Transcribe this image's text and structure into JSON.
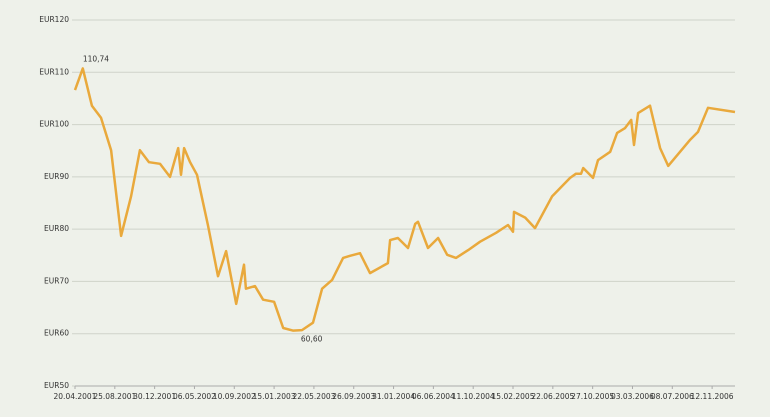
{
  "chart_data": {
    "type": "line",
    "x": [
      "20.04.2001",
      "15.05.2001",
      "13.06.2001",
      "12.07.2001",
      "13.08.2001",
      "14.09.2001",
      "16.10.2001",
      "13.11.2001",
      "12.12.2001",
      "16.01.2002",
      "17.02.2002",
      "15.03.2002",
      "24.03.2002",
      "03.04.2002",
      "22.04.2002",
      "14.05.2002",
      "18.06.2002",
      "20.07.2002",
      "15.08.2002",
      "16.09.2002",
      "11.10.2002",
      "17.10.2002",
      "15.11.2002",
      "11.12.2002",
      "15.01.2003",
      "13.02.2003",
      "16.03.2003",
      "14.04.2003",
      "19.05.2003",
      "17.06.2003",
      "19.07.2003",
      "23.08.2003",
      "14.09.2003",
      "16.10.2003",
      "17.11.2003",
      "13.01.2004",
      "20.01.2004",
      "14.02.2004",
      "17.03.2004",
      "09.04.2004",
      "18.04.2004",
      "20.05.2004",
      "21.06.2004",
      "20.07.2004",
      "17.08.2004",
      "25.09.2004",
      "02.11.2004",
      "23.12.2004",
      "30.01.2005",
      "15.02.2005",
      "18.02.2005",
      "26.03.2005",
      "26.04.2005",
      "20.06.2005",
      "16.08.2005",
      "04.09.2005",
      "20.09.2005",
      "27.09.2005",
      "28.10.2005",
      "13.11.2005",
      "22.12.2005",
      "13.01.2006",
      "07.02.2006",
      "27.02.2006",
      "08.03.2006",
      "21.03.2006",
      "28.04.2006",
      "30.05.2006",
      "25.06.2006",
      "03.09.2006",
      "28.09.2006",
      "30.10.2006",
      "24.01.2007"
    ],
    "series": [
      {
        "color": "#e9a93c",
        "values": [
          106.6,
          110.74,
          103.6,
          101.3,
          95.1,
          78.7,
          86.3,
          95.1,
          92.8,
          92.5,
          90.0,
          95.5,
          90.4,
          95.5,
          92.8,
          90.4,
          80.8,
          71.0,
          75.8,
          65.7,
          73.2,
          68.6,
          69.1,
          66.5,
          66.1,
          61.1,
          60.6,
          60.7,
          62.1,
          68.6,
          70.3,
          74.5,
          74.9,
          75.4,
          71.6,
          73.5,
          77.9,
          78.3,
          76.4,
          81.0,
          81.4,
          76.4,
          78.3,
          75.1,
          74.5,
          76.0,
          77.6,
          79.3,
          80.8,
          79.5,
          83.3,
          82.2,
          80.2,
          86.3,
          89.8,
          90.6,
          90.6,
          91.7,
          89.8,
          93.2,
          94.8,
          98.4,
          99.3,
          100.9,
          96.1,
          102.2,
          103.6,
          95.5,
          92.1,
          97.1,
          98.6,
          103.2,
          102.4
        ],
        "value_labels": [
          null,
          "110,74",
          null,
          null,
          null,
          null,
          null,
          null,
          null,
          null,
          null,
          null,
          null,
          null,
          null,
          null,
          null,
          null,
          null,
          null,
          null,
          null,
          null,
          null,
          null,
          null,
          "60,60",
          null,
          null,
          null,
          null,
          null,
          null,
          null,
          null,
          null,
          null,
          null,
          null,
          null,
          null,
          null,
          null,
          null,
          null,
          null,
          null,
          null,
          null,
          null,
          null,
          null,
          null,
          null,
          null,
          null,
          null,
          null,
          null,
          null,
          null,
          null,
          null,
          null,
          null,
          null,
          null,
          null,
          null,
          null,
          null,
          null,
          null
        ]
      }
    ],
    "xlim": [
      "20.04.2001",
      "24.01.2007"
    ],
    "xticks": [
      "20.04.2001",
      "25.08.2001",
      "30.12.2001",
      "06.05.2002",
      "10.09.2002",
      "15.01.2003",
      "22.05.2003",
      "26.09.2003",
      "31.01.2004",
      "06.06.2004",
      "11.10.2004",
      "15.02.2005",
      "22.06.2005",
      "27.10.2005",
      "03.03.2006",
      "08.07.2006",
      "12.11.2006"
    ],
    "ylim": [
      50,
      120
    ],
    "yticks": [
      {
        "value": 50,
        "label": "EUR50"
      },
      {
        "value": 60,
        "label": "EUR60"
      },
      {
        "value": 70,
        "label": "EUR70"
      },
      {
        "value": 80,
        "label": "EUR80"
      },
      {
        "value": 90,
        "label": "EUR90"
      },
      {
        "value": 100,
        "label": "EUR100"
      },
      {
        "value": 110,
        "label": "EUR110"
      },
      {
        "value": 120,
        "label": "EUR120"
      }
    ],
    "grid": true
  }
}
